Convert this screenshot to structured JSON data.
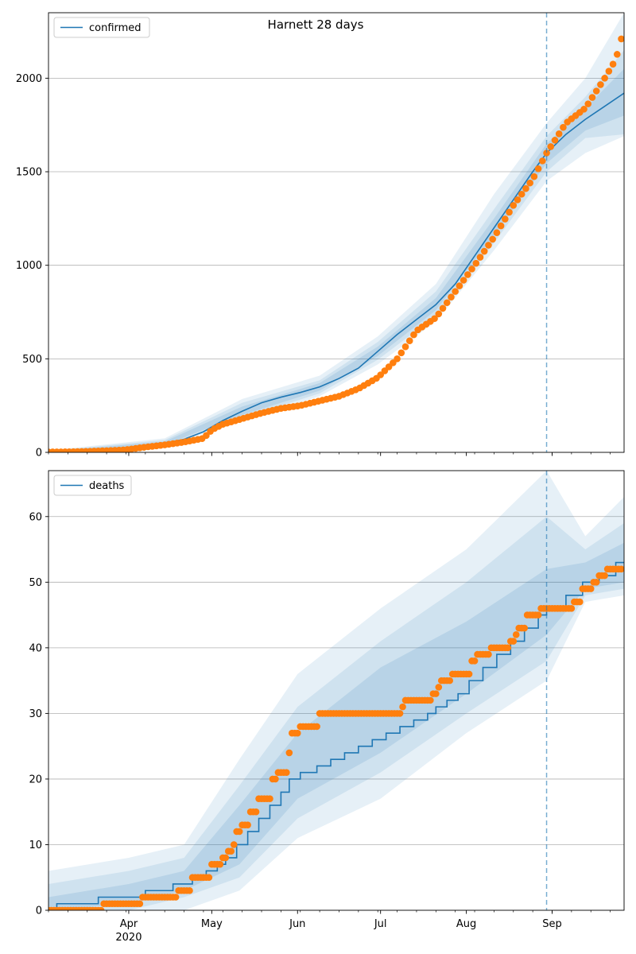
{
  "chart_data": [
    {
      "type": "line",
      "title": "Harnett 28 days",
      "xlabel": "",
      "ylabel": "",
      "legend": {
        "entries": [
          "confirmed"
        ],
        "placement": "top-left"
      },
      "grid": {
        "y": true,
        "x": false
      },
      "x_range": [
        "2020-03-03",
        "2020-09-27"
      ],
      "ylim": [
        0,
        2350
      ],
      "y_ticks": [
        0,
        500,
        1000,
        1500,
        2000
      ],
      "x_ticks": [
        {
          "date": "2020-04-01",
          "label": "Apr"
        },
        {
          "date": "2020-05-01",
          "label": "May"
        },
        {
          "date": "2020-06-01",
          "label": "Jun"
        },
        {
          "date": "2020-07-01",
          "label": "Jul"
        },
        {
          "date": "2020-08-01",
          "label": "Aug"
        },
        {
          "date": "2020-09-01",
          "label": "Sep"
        }
      ],
      "year_label": "2020",
      "forecast_start": "2020-08-30",
      "model_line": {
        "name": "confirmed",
        "color": "#1f77b4",
        "points": [
          [
            "2020-03-03",
            2
          ],
          [
            "2020-03-17",
            6
          ],
          [
            "2020-03-31",
            20
          ],
          [
            "2020-04-07",
            32
          ],
          [
            "2020-04-14",
            48
          ],
          [
            "2020-04-21",
            70
          ],
          [
            "2020-04-28",
            110
          ],
          [
            "2020-05-05",
            170
          ],
          [
            "2020-05-12",
            220
          ],
          [
            "2020-05-19",
            265
          ],
          [
            "2020-05-26",
            295
          ],
          [
            "2020-06-02",
            320
          ],
          [
            "2020-06-09",
            350
          ],
          [
            "2020-06-16",
            395
          ],
          [
            "2020-06-23",
            450
          ],
          [
            "2020-06-30",
            540
          ],
          [
            "2020-07-07",
            630
          ],
          [
            "2020-07-14",
            710
          ],
          [
            "2020-07-21",
            790
          ],
          [
            "2020-07-28",
            900
          ],
          [
            "2020-08-04",
            1050
          ],
          [
            "2020-08-11",
            1200
          ],
          [
            "2020-08-18",
            1350
          ],
          [
            "2020-08-25",
            1500
          ],
          [
            "2020-08-30",
            1600
          ],
          [
            "2020-09-06",
            1700
          ],
          [
            "2020-09-13",
            1780
          ],
          [
            "2020-09-20",
            1850
          ],
          [
            "2020-09-27",
            1920
          ]
        ]
      },
      "bands": [
        {
          "points": [
            [
              "2020-03-03",
              0,
              10
            ],
            [
              "2020-04-14",
              30,
              75
            ],
            [
              "2020-05-12",
              170,
              285
            ],
            [
              "2020-06-09",
              300,
              410
            ],
            [
              "2020-06-30",
              470,
              620
            ],
            [
              "2020-07-21",
              700,
              900
            ],
            [
              "2020-08-11",
              1080,
              1380
            ],
            [
              "2020-08-30",
              1450,
              1760
            ],
            [
              "2020-09-13",
              1600,
              2000
            ],
            [
              "2020-09-27",
              1690,
              2350
            ]
          ]
        },
        {
          "points": [
            [
              "2020-03-03",
              0,
              7
            ],
            [
              "2020-04-14",
              35,
              66
            ],
            [
              "2020-05-12",
              185,
              265
            ],
            [
              "2020-06-09",
              315,
              385
            ],
            [
              "2020-06-30",
              495,
              590
            ],
            [
              "2020-07-21",
              730,
              860
            ],
            [
              "2020-08-11",
              1120,
              1300
            ],
            [
              "2020-08-30",
              1500,
              1690
            ],
            [
              "2020-09-13",
              1680,
              1900
            ],
            [
              "2020-09-27",
              1700,
              2150
            ]
          ]
        },
        {
          "points": [
            [
              "2020-03-03",
              1,
              5
            ],
            [
              "2020-04-14",
              40,
              58
            ],
            [
              "2020-05-12",
              200,
              245
            ],
            [
              "2020-06-09",
              330,
              370
            ],
            [
              "2020-06-30",
              515,
              565
            ],
            [
              "2020-07-21",
              760,
              825
            ],
            [
              "2020-08-11",
              1160,
              1250
            ],
            [
              "2020-08-30",
              1545,
              1650
            ],
            [
              "2020-09-13",
              1720,
              1840
            ],
            [
              "2020-09-27",
              1800,
              2050
            ]
          ]
        }
      ],
      "observed": {
        "color": "#ff7f0e",
        "points": [
          [
            "2020-03-03",
            2
          ],
          [
            "2020-03-10",
            3
          ],
          [
            "2020-03-17",
            5
          ],
          [
            "2020-03-24",
            9
          ],
          [
            "2020-03-31",
            14
          ],
          [
            "2020-04-07",
            28
          ],
          [
            "2020-04-14",
            40
          ],
          [
            "2020-04-21",
            55
          ],
          [
            "2020-04-28",
            75
          ],
          [
            "2020-05-01",
            120
          ],
          [
            "2020-05-05",
            150
          ],
          [
            "2020-05-12",
            180
          ],
          [
            "2020-05-19",
            210
          ],
          [
            "2020-05-26",
            235
          ],
          [
            "2020-06-02",
            250
          ],
          [
            "2020-06-09",
            275
          ],
          [
            "2020-06-16",
            300
          ],
          [
            "2020-06-23",
            340
          ],
          [
            "2020-06-30",
            400
          ],
          [
            "2020-07-07",
            500
          ],
          [
            "2020-07-14",
            650
          ],
          [
            "2020-07-21",
            720
          ],
          [
            "2020-07-28",
            860
          ],
          [
            "2020-08-04",
            1000
          ],
          [
            "2020-08-11",
            1150
          ],
          [
            "2020-08-18",
            1320
          ],
          [
            "2020-08-25",
            1460
          ],
          [
            "2020-08-30",
            1600
          ],
          [
            "2020-09-06",
            1760
          ],
          [
            "2020-09-13",
            1840
          ],
          [
            "2020-09-20",
            2000
          ],
          [
            "2020-09-24",
            2100
          ],
          [
            "2020-09-26",
            2210
          ]
        ]
      }
    },
    {
      "type": "line",
      "title": "",
      "xlabel": "",
      "ylabel": "",
      "legend": {
        "entries": [
          "deaths"
        ],
        "placement": "top-left"
      },
      "grid": {
        "y": true,
        "x": false
      },
      "x_range": [
        "2020-03-03",
        "2020-09-27"
      ],
      "ylim": [
        0,
        67
      ],
      "y_ticks": [
        0,
        10,
        20,
        30,
        40,
        50,
        60
      ],
      "x_ticks": [
        {
          "date": "2020-04-01",
          "label": "Apr"
        },
        {
          "date": "2020-05-01",
          "label": "May"
        },
        {
          "date": "2020-06-01",
          "label": "Jun"
        },
        {
          "date": "2020-07-01",
          "label": "Jul"
        },
        {
          "date": "2020-08-01",
          "label": "Aug"
        },
        {
          "date": "2020-09-01",
          "label": "Sep"
        }
      ],
      "year_label": "2020",
      "forecast_start": "2020-08-30",
      "model_line": {
        "name": "deaths",
        "color": "#1f77b4",
        "step": true,
        "points": [
          [
            "2020-03-03",
            0
          ],
          [
            "2020-03-06",
            1
          ],
          [
            "2020-03-21",
            2
          ],
          [
            "2020-04-07",
            3
          ],
          [
            "2020-04-17",
            4
          ],
          [
            "2020-04-24",
            5
          ],
          [
            "2020-04-29",
            6
          ],
          [
            "2020-05-03",
            7
          ],
          [
            "2020-05-06",
            8
          ],
          [
            "2020-05-10",
            10
          ],
          [
            "2020-05-14",
            12
          ],
          [
            "2020-05-18",
            14
          ],
          [
            "2020-05-22",
            16
          ],
          [
            "2020-05-26",
            18
          ],
          [
            "2020-05-29",
            20
          ],
          [
            "2020-06-02",
            21
          ],
          [
            "2020-06-08",
            22
          ],
          [
            "2020-06-13",
            23
          ],
          [
            "2020-06-18",
            24
          ],
          [
            "2020-06-23",
            25
          ],
          [
            "2020-06-28",
            26
          ],
          [
            "2020-07-03",
            27
          ],
          [
            "2020-07-08",
            28
          ],
          [
            "2020-07-13",
            29
          ],
          [
            "2020-07-18",
            30
          ],
          [
            "2020-07-21",
            31
          ],
          [
            "2020-07-25",
            32
          ],
          [
            "2020-07-29",
            33
          ],
          [
            "2020-08-02",
            35
          ],
          [
            "2020-08-07",
            37
          ],
          [
            "2020-08-12",
            39
          ],
          [
            "2020-08-17",
            41
          ],
          [
            "2020-08-22",
            43
          ],
          [
            "2020-08-27",
            45
          ],
          [
            "2020-08-30",
            46
          ],
          [
            "2020-09-06",
            48
          ],
          [
            "2020-09-12",
            50
          ],
          [
            "2020-09-18",
            51
          ],
          [
            "2020-09-24",
            53
          ],
          [
            "2020-09-27",
            53
          ]
        ]
      },
      "bands": [
        {
          "points": [
            [
              "2020-03-03",
              0,
              6
            ],
            [
              "2020-04-01",
              0,
              8
            ],
            [
              "2020-04-21",
              0,
              10
            ],
            [
              "2020-05-11",
              3,
              23
            ],
            [
              "2020-06-01",
              11,
              36
            ],
            [
              "2020-07-01",
              17,
              46
            ],
            [
              "2020-08-01",
              27,
              55
            ],
            [
              "2020-08-30",
              35,
              67
            ],
            [
              "2020-09-13",
              47,
              57
            ],
            [
              "2020-09-27",
              48,
              63
            ]
          ]
        },
        {
          "points": [
            [
              "2020-03-03",
              0,
              4
            ],
            [
              "2020-04-01",
              0,
              6
            ],
            [
              "2020-04-21",
              2,
              8
            ],
            [
              "2020-05-11",
              5,
              19
            ],
            [
              "2020-06-01",
              14,
              31
            ],
            [
              "2020-07-01",
              21,
              41
            ],
            [
              "2020-08-01",
              30,
              50
            ],
            [
              "2020-08-30",
              38,
              60
            ],
            [
              "2020-09-13",
              48,
              55
            ],
            [
              "2020-09-27",
              49,
              59
            ]
          ]
        },
        {
          "points": [
            [
              "2020-03-03",
              0,
              2
            ],
            [
              "2020-04-01",
              1,
              4
            ],
            [
              "2020-04-21",
              3,
              6
            ],
            [
              "2020-05-11",
              7,
              16
            ],
            [
              "2020-06-01",
              17,
              27
            ],
            [
              "2020-07-01",
              24,
              37
            ],
            [
              "2020-08-01",
              33,
              44
            ],
            [
              "2020-08-30",
              42,
              52
            ],
            [
              "2020-09-13",
              49,
              53
            ],
            [
              "2020-09-27",
              50,
              56
            ]
          ]
        }
      ],
      "observed": {
        "color": "#ff7f0e",
        "step_values": [
          [
            "2020-03-03",
            0
          ],
          [
            "2020-03-23",
            1
          ],
          [
            "2020-04-06",
            2
          ],
          [
            "2020-04-19",
            3
          ],
          [
            "2020-04-24",
            5
          ],
          [
            "2020-05-01",
            7
          ],
          [
            "2020-05-05",
            8
          ],
          [
            "2020-05-07",
            9
          ],
          [
            "2020-05-09",
            10
          ],
          [
            "2020-05-10",
            12
          ],
          [
            "2020-05-12",
            13
          ],
          [
            "2020-05-15",
            15
          ],
          [
            "2020-05-18",
            17
          ],
          [
            "2020-05-23",
            20
          ],
          [
            "2020-05-25",
            21
          ],
          [
            "2020-05-29",
            24
          ],
          [
            "2020-05-30",
            27
          ],
          [
            "2020-06-02",
            28
          ],
          [
            "2020-06-09",
            30
          ],
          [
            "2020-07-09",
            31
          ],
          [
            "2020-07-10",
            32
          ],
          [
            "2020-07-20",
            33
          ],
          [
            "2020-07-22",
            34
          ],
          [
            "2020-07-23",
            35
          ],
          [
            "2020-07-27",
            36
          ],
          [
            "2020-08-03",
            38
          ],
          [
            "2020-08-05",
            39
          ],
          [
            "2020-08-10",
            40
          ],
          [
            "2020-08-17",
            41
          ],
          [
            "2020-08-19",
            42
          ],
          [
            "2020-08-20",
            43
          ],
          [
            "2020-08-23",
            45
          ],
          [
            "2020-08-28",
            46
          ],
          [
            "2020-09-09",
            47
          ],
          [
            "2020-09-12",
            49
          ],
          [
            "2020-09-16",
            50
          ],
          [
            "2020-09-18",
            51
          ],
          [
            "2020-09-21",
            52
          ]
        ],
        "end": "2020-09-26"
      }
    }
  ]
}
